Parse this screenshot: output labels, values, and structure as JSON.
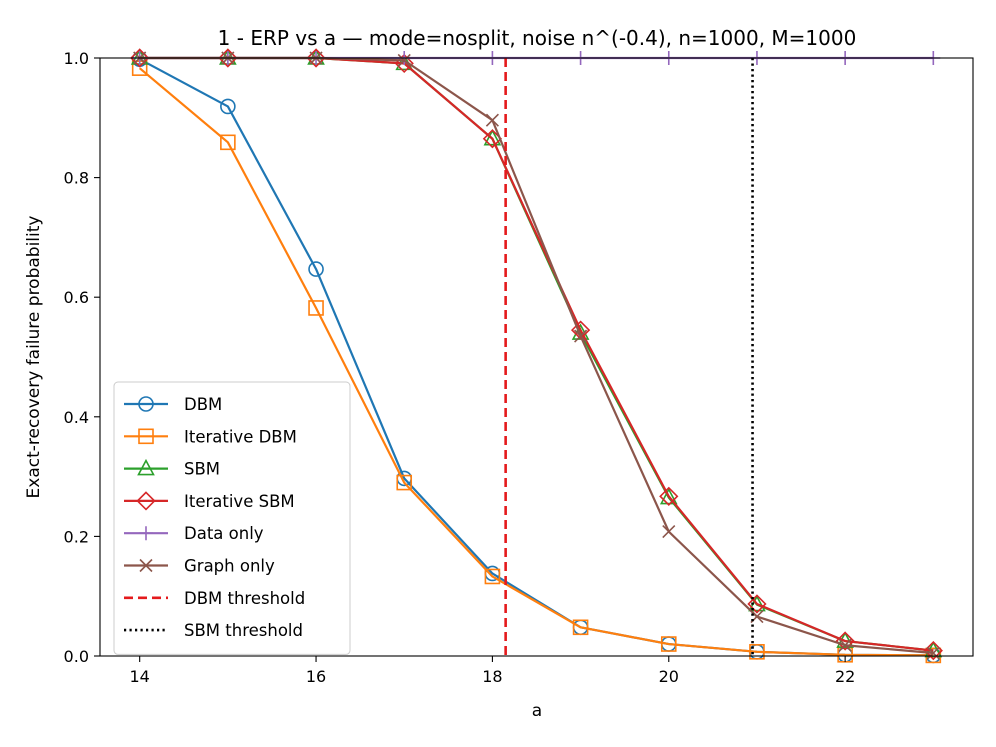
{
  "chart_data": {
    "type": "line",
    "title": "1 - ERP vs a — mode=nosplit, noise n^(-0.4), n=1000, M=1000",
    "xlabel": "a",
    "ylabel": "Exact-recovery failure probability",
    "xlim": [
      13.55,
      23.45
    ],
    "ylim": [
      0.0,
      1.0
    ],
    "xticks": [
      14,
      16,
      18,
      20,
      22
    ],
    "yticks": [
      0.0,
      0.2,
      0.4,
      0.6,
      0.8,
      1.0
    ],
    "xtick_labels": [
      "14",
      "16",
      "18",
      "20",
      "22"
    ],
    "ytick_labels": [
      "0.0",
      "0.2",
      "0.4",
      "0.6",
      "0.8",
      "1.0"
    ],
    "grid": false,
    "legend_position": "lower-left",
    "x": [
      14,
      15,
      16,
      17,
      18,
      19,
      20,
      21,
      22,
      23
    ],
    "series": [
      {
        "name": "DBM",
        "color": "#1f77b4",
        "marker": "circle",
        "values": [
          0.998,
          0.919,
          0.647,
          0.297,
          0.138,
          0.048,
          0.02,
          0.007,
          0.002,
          0.001
        ]
      },
      {
        "name": "Iterative DBM",
        "color": "#ff7f0e",
        "marker": "square",
        "values": [
          0.983,
          0.859,
          0.582,
          0.29,
          0.133,
          0.048,
          0.02,
          0.007,
          0.002,
          0.001
        ]
      },
      {
        "name": "SBM",
        "color": "#2ca02c",
        "marker": "triangle",
        "values": [
          1.0,
          1.0,
          1.0,
          0.991,
          0.865,
          0.54,
          0.265,
          0.086,
          0.025,
          0.009
        ]
      },
      {
        "name": "Iterative SBM",
        "color": "#d62728",
        "marker": "diamond",
        "values": [
          1.0,
          1.0,
          1.0,
          0.991,
          0.865,
          0.545,
          0.267,
          0.087,
          0.025,
          0.009
        ]
      },
      {
        "name": "Data only",
        "color": "#9467bd",
        "marker": "plus",
        "values": [
          1.0,
          1.0,
          1.0,
          1.0,
          1.0,
          1.0,
          1.0,
          1.0,
          1.0,
          1.0
        ]
      },
      {
        "name": "Graph only",
        "color": "#8c564b",
        "marker": "x",
        "values": [
          1.0,
          1.0,
          1.0,
          0.996,
          0.896,
          0.535,
          0.208,
          0.066,
          0.018,
          0.005
        ]
      }
    ],
    "thresholds": [
      {
        "name": "DBM threshold",
        "x": 18.15,
        "color": "#e41a1c",
        "style": "dashed"
      },
      {
        "name": "SBM threshold",
        "x": 20.95,
        "color": "#000000",
        "style": "dotted"
      }
    ]
  }
}
